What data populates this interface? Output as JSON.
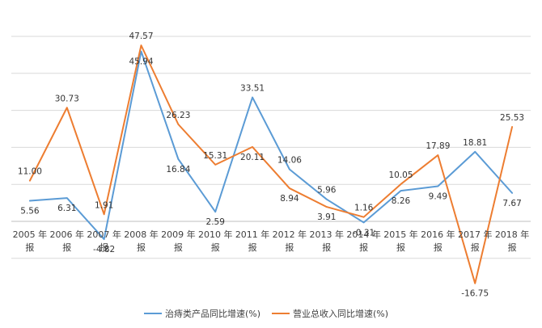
{
  "chart_data": {
    "type": "line",
    "title": "",
    "xlabel": "",
    "ylabel": "",
    "grid": true,
    "legend_position": "bottom",
    "ylim": [
      -20,
      50
    ],
    "categories": [
      [
        "2005 年",
        "报"
      ],
      [
        "2006 年",
        "报"
      ],
      [
        "2007 年",
        "报"
      ],
      [
        "2008 年",
        "报"
      ],
      [
        "2009 年",
        "报"
      ],
      [
        "2010 年",
        "报"
      ],
      [
        "2011 年",
        "报"
      ],
      [
        "2012 年",
        "报"
      ],
      [
        "2013 年",
        "报"
      ],
      [
        "2014 年",
        "报"
      ],
      [
        "2015 年",
        "报"
      ],
      [
        "2016 年",
        "报"
      ],
      [
        "2017 年",
        "报"
      ],
      [
        "2018 年",
        "报"
      ]
    ],
    "series": [
      {
        "name": "治痔类产品同比增速(%)",
        "color": "#5B9BD5",
        "values": [
          5.56,
          6.31,
          -4.82,
          45.94,
          16.84,
          2.59,
          33.51,
          14.06,
          5.96,
          -0.31,
          8.26,
          9.49,
          18.81,
          7.67
        ],
        "labels": [
          "5.56",
          "6.31",
          "-4.82",
          "45.94",
          "16.84",
          "2.59",
          "33.51",
          "14.06",
          "5.96",
          "-0.31",
          "8.26",
          "9.49",
          "18.81",
          "7.67"
        ]
      },
      {
        "name": "营业总收入同比增速(%)",
        "color": "#ED7D31",
        "values": [
          11.0,
          30.73,
          1.91,
          47.57,
          26.23,
          15.31,
          20.11,
          8.94,
          3.91,
          1.16,
          10.05,
          17.89,
          -16.75,
          25.53
        ],
        "labels": [
          "11.00",
          "30.73",
          "1.91",
          "47.57",
          "26.23",
          "15.31",
          "20.11",
          "8.94",
          "3.91",
          "1.16",
          "10.05",
          "17.89",
          "-16.75",
          "25.53"
        ]
      }
    ]
  }
}
